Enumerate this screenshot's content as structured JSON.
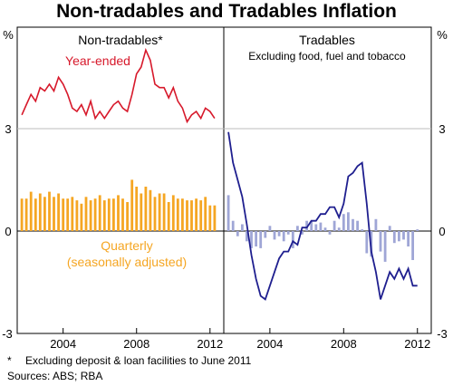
{
  "title": "Non-tradables and Tradables Inflation",
  "footnote_marker": "*",
  "footnote": "Excluding deposit & loan facilities to June 2011",
  "sources": "Sources: ABS; RBA",
  "chart_data": [
    {
      "type": "line+bar",
      "panel_title": "Non-tradables*",
      "ylabel_left": "%",
      "ylim": [
        -3,
        6
      ],
      "yticks": [
        -3,
        0,
        3
      ],
      "x_ticks": [
        "2004",
        "2008",
        "2012"
      ],
      "series": [
        {
          "name": "Year-ended",
          "type": "line",
          "color": "#d7192b",
          "start_year": 2001.75,
          "values": [
            3.4,
            3.7,
            4.0,
            3.8,
            4.2,
            4.1,
            4.3,
            4.1,
            4.5,
            4.3,
            4.0,
            3.6,
            3.5,
            3.7,
            3.4,
            3.8,
            3.3,
            3.5,
            3.3,
            3.5,
            3.7,
            3.8,
            3.6,
            3.5,
            4.0,
            4.6,
            4.8,
            5.3,
            5.0,
            4.3,
            4.2,
            4.2,
            3.9,
            4.2,
            3.8,
            3.6,
            3.2,
            3.4,
            3.5,
            3.3,
            3.6,
            3.5,
            3.3
          ]
        },
        {
          "name": "Quarterly (seasonally adjusted)",
          "type": "bar",
          "color": "#f5a623",
          "start_year": 2001.75,
          "values": [
            0.95,
            0.95,
            1.15,
            0.95,
            1.1,
            1.0,
            1.15,
            1.0,
            1.1,
            0.95,
            0.95,
            1.0,
            0.9,
            0.8,
            1.0,
            0.9,
            0.95,
            1.05,
            0.9,
            0.95,
            0.95,
            1.05,
            0.95,
            0.85,
            1.5,
            1.3,
            1.1,
            1.3,
            1.2,
            1.0,
            1.1,
            1.1,
            0.85,
            1.05,
            0.95,
            0.95,
            0.9,
            0.9,
            0.95,
            0.9,
            1.0,
            0.75,
            0.75
          ]
        }
      ],
      "labels": {
        "line": "Year-ended",
        "bar_line1": "Quarterly",
        "bar_line2": "(seasonally adjusted)"
      }
    },
    {
      "type": "line+bar",
      "panel_title": "Tradables",
      "panel_subtitle": "Excluding food, fuel and tobacco",
      "ylabel_right": "%",
      "ylim": [
        -3,
        6
      ],
      "yticks": [
        -3,
        0,
        3
      ],
      "x_ticks": [
        "2004",
        "2008",
        "2012"
      ],
      "series": [
        {
          "name": "Year-ended",
          "type": "line",
          "color": "#1f1f8f",
          "start_year": 2001.75,
          "values": [
            2.9,
            2.0,
            1.5,
            1.0,
            0.2,
            -0.7,
            -1.4,
            -1.9,
            -2.0,
            -1.6,
            -1.2,
            -0.8,
            -0.6,
            -0.6,
            -0.3,
            -0.4,
            0.1,
            0.1,
            0.3,
            0.3,
            0.5,
            0.5,
            0.7,
            0.7,
            0.4,
            0.8,
            1.6,
            1.7,
            1.9,
            2.0,
            0.8,
            -0.6,
            -1.2,
            -2.0,
            -1.6,
            -1.2,
            -1.4,
            -1.1,
            -1.4,
            -1.1,
            -1.6,
            -1.6
          ]
        },
        {
          "name": "Quarterly",
          "type": "bar",
          "color": "#9fa6d6",
          "start_year": 2001.75,
          "values": [
            1.05,
            0.3,
            -0.15,
            0.2,
            -0.3,
            -0.5,
            -0.45,
            -0.5,
            -0.2,
            0.15,
            -0.25,
            -0.15,
            -0.3,
            -0.1,
            -0.5,
            0.15,
            -0.1,
            0.3,
            0.3,
            0.2,
            0.25,
            0.1,
            -0.1,
            0.3,
            0.1,
            0.5,
            0.55,
            0.35,
            0.3,
            0.05,
            -0.65,
            -0.75,
            0.35,
            -0.6,
            -0.9,
            0.15,
            -0.35,
            -0.3,
            -0.25,
            -0.45,
            -0.85,
            0.05
          ]
        }
      ]
    }
  ]
}
